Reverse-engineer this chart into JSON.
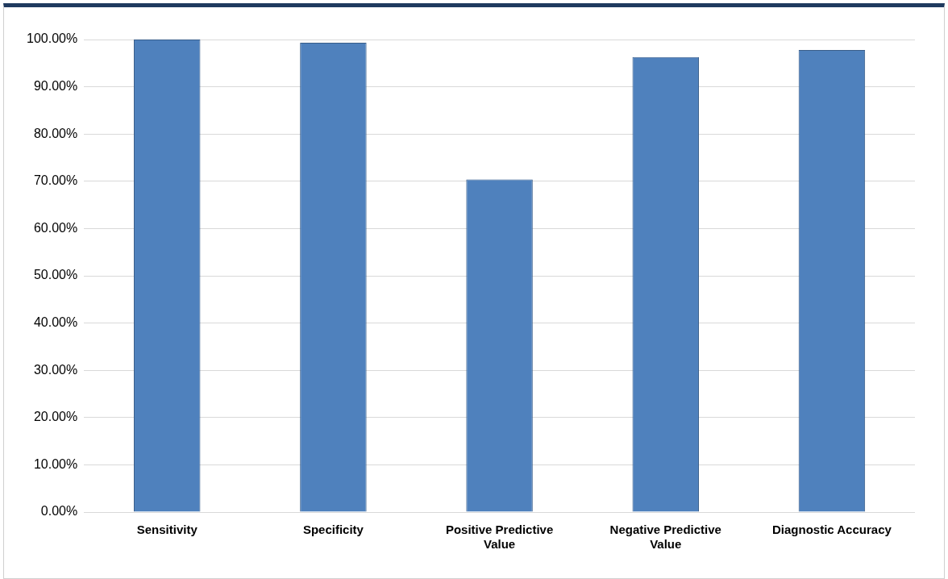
{
  "chart_data": {
    "type": "bar",
    "categories": [
      "Sensitivity",
      "Specificity",
      "Positive Predictive Value",
      "Negative Predictive Value",
      "Diagnostic Accuracy"
    ],
    "values": [
      100,
      99.3,
      70.4,
      96.3,
      97.8
    ],
    "color": "#4f81bd",
    "ylim": [
      0,
      100
    ],
    "yticks": [
      {
        "value": 0,
        "label": "0.00%"
      },
      {
        "value": 10,
        "label": "10.00%"
      },
      {
        "value": 20,
        "label": "20.00%"
      },
      {
        "value": 30,
        "label": "30.00%"
      },
      {
        "value": 40,
        "label": "40.00%"
      },
      {
        "value": 50,
        "label": "50.00%"
      },
      {
        "value": 60,
        "label": "60.00%"
      },
      {
        "value": 70,
        "label": "70.00%"
      },
      {
        "value": 80,
        "label": "80.00%"
      },
      {
        "value": 90,
        "label": "90.00%"
      },
      {
        "value": 100,
        "label": "100.00%"
      }
    ],
    "grid": "y",
    "legend": false
  }
}
